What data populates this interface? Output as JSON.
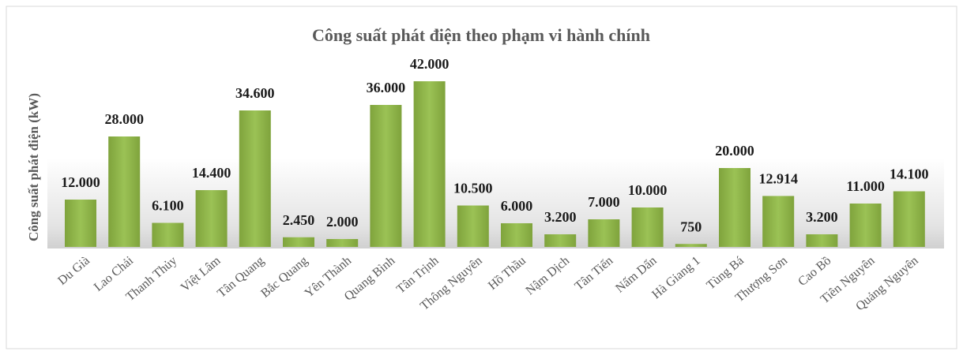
{
  "chart_data": {
    "type": "bar",
    "title": "Công suất phát điện theo phạm vi hành chính",
    "y_label": "Công suất phát điện (kW)",
    "categories": [
      "Du Già",
      "Lao Chải",
      "Thanh Thủy",
      "Việt Lâm",
      "Tân Quang",
      "Bắc Quang",
      "Yên Thành",
      "Quang Bình",
      "Tân Trịnh",
      "Thông Nguyên",
      "Hồ Thầu",
      "Nậm Dịch",
      "Tân Tiến",
      "Nấm Dẩn",
      "Hà Giang 1",
      "Tùng Bá",
      "Thượng Sơn",
      "Cao Bồ",
      "Tiên Nguyên",
      "Quảng Nguyên"
    ],
    "values": [
      12000,
      28000,
      6100,
      14400,
      34600,
      2450,
      2000,
      36000,
      42000,
      10500,
      6000,
      3200,
      7000,
      10000,
      750,
      20000,
      12914,
      3200,
      11000,
      14100
    ],
    "value_labels": [
      "12.000",
      "28.000",
      "6.100",
      "14.400",
      "34.600",
      "2.450",
      "2.000",
      "36.000",
      "42.000",
      "10.500",
      "6.000",
      "3.200",
      "7.000",
      "10.000",
      "750",
      "20.000",
      "12.914",
      "3.200",
      "11.000",
      "14.100"
    ],
    "color": "#8db04a",
    "ylim": [
      0,
      45000
    ]
  }
}
